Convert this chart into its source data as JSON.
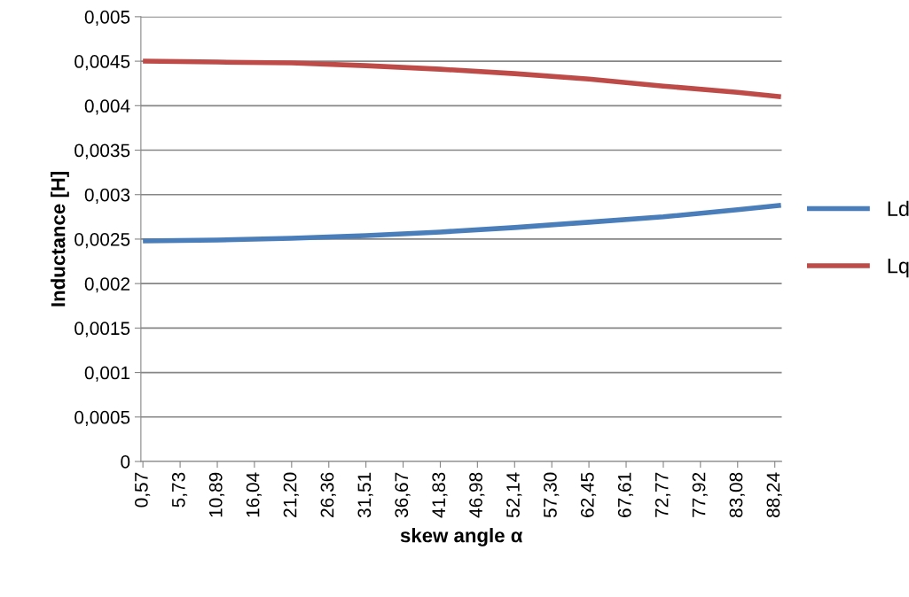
{
  "chart_data": {
    "type": "line",
    "xlabel": "skew angle α",
    "ylabel": "Inductance [H]",
    "xlim": [
      0.29,
      89.2
    ],
    "xticks": [
      {
        "value": 0.57,
        "label": "0,57"
      },
      {
        "value": 5.73,
        "label": "5,73"
      },
      {
        "value": 10.89,
        "label": "10,89"
      },
      {
        "value": 16.04,
        "label": "16,04"
      },
      {
        "value": 21.2,
        "label": "21,20"
      },
      {
        "value": 26.36,
        "label": "26,36"
      },
      {
        "value": 31.51,
        "label": "31,51"
      },
      {
        "value": 36.67,
        "label": "36,67"
      },
      {
        "value": 41.83,
        "label": "41,83"
      },
      {
        "value": 46.98,
        "label": "46,98"
      },
      {
        "value": 52.14,
        "label": "52,14"
      },
      {
        "value": 57.3,
        "label": "57,30"
      },
      {
        "value": 62.45,
        "label": "62,45"
      },
      {
        "value": 67.61,
        "label": "67,61"
      },
      {
        "value": 72.77,
        "label": "72,77"
      },
      {
        "value": 77.92,
        "label": "77,92"
      },
      {
        "value": 83.08,
        "label": "83,08"
      },
      {
        "value": 88.24,
        "label": "88,24"
      }
    ],
    "ylim": [
      0,
      0.005
    ],
    "yticks": [
      0,
      {
        "value": 0.0005,
        "label": "0,0005"
      },
      {
        "value": 0.001,
        "label": "0,001"
      },
      {
        "value": 0.0015,
        "label": "0,0015"
      },
      {
        "value": 0.002,
        "label": "0,002"
      },
      {
        "value": 0.0025,
        "label": "0,0025"
      },
      {
        "value": 0.003,
        "label": "0,003"
      },
      {
        "value": 0.0035,
        "label": "0,0035"
      },
      {
        "value": 0.004,
        "label": "0,004"
      },
      {
        "value": 0.0045,
        "label": "0,0045"
      },
      {
        "value": 0.005,
        "label": "0,005"
      }
    ],
    "grid": "y",
    "legend": "right",
    "marker": "none",
    "line_style": "solid",
    "series": [
      {
        "name": "Ld",
        "color": "#4a7ebb",
        "x": [
          0.57,
          10.89,
          21.2,
          31.51,
          41.83,
          52.14,
          62.45,
          72.77,
          83.08,
          89.1
        ],
        "values": [
          0.00248,
          0.00249,
          0.00251,
          0.00254,
          0.00258,
          0.00263,
          0.00269,
          0.00275,
          0.00283,
          0.00288
        ]
      },
      {
        "name": "Lq",
        "color": "#be4b48",
        "x": [
          0.57,
          10.89,
          21.2,
          31.51,
          41.83,
          52.14,
          62.45,
          72.77,
          83.08,
          89.1
        ],
        "values": [
          0.0045,
          0.00449,
          0.00448,
          0.00445,
          0.00441,
          0.00436,
          0.0043,
          0.00422,
          0.00415,
          0.0041
        ]
      }
    ]
  }
}
